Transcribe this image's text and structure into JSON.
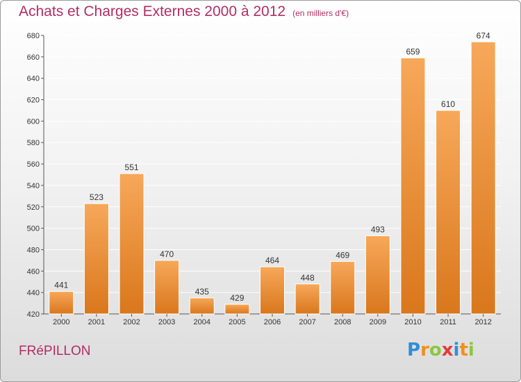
{
  "header": {
    "title": "Achats et Charges Externes 2000 à 2012",
    "subtitle": "(en milliers d'€)"
  },
  "footer": {
    "place": "FRéPILLON",
    "logo": {
      "letters": [
        "P",
        "r",
        "o",
        "x",
        "i",
        "t",
        "i"
      ],
      "colors": [
        "#2e8fd8",
        "#f28e1c",
        "#8cc63f",
        "#e23b3b",
        "#2e8fd8",
        "#f28e1c",
        "#8cc63f"
      ]
    }
  },
  "colors": {
    "bar_top": "#f7a85a",
    "bar_bottom": "#d9771c",
    "bar_edge": "#ffffff",
    "grid": "#ffffff",
    "axis": "#555555"
  },
  "chart_data": {
    "type": "bar",
    "title": "Achats et Charges Externes 2000 à 2012",
    "xlabel": "",
    "ylabel": "",
    "ylim": [
      420,
      680
    ],
    "yticks": [
      420,
      440,
      460,
      480,
      500,
      520,
      540,
      560,
      580,
      600,
      620,
      640,
      660,
      680
    ],
    "grid": true,
    "categories": [
      "2000",
      "2001",
      "2002",
      "2003",
      "2004",
      "2005",
      "2006",
      "2007",
      "2008",
      "2009",
      "2010",
      "2011",
      "2012"
    ],
    "values": [
      441,
      523,
      551,
      470,
      435,
      429,
      464,
      448,
      469,
      493,
      659,
      610,
      674
    ]
  }
}
